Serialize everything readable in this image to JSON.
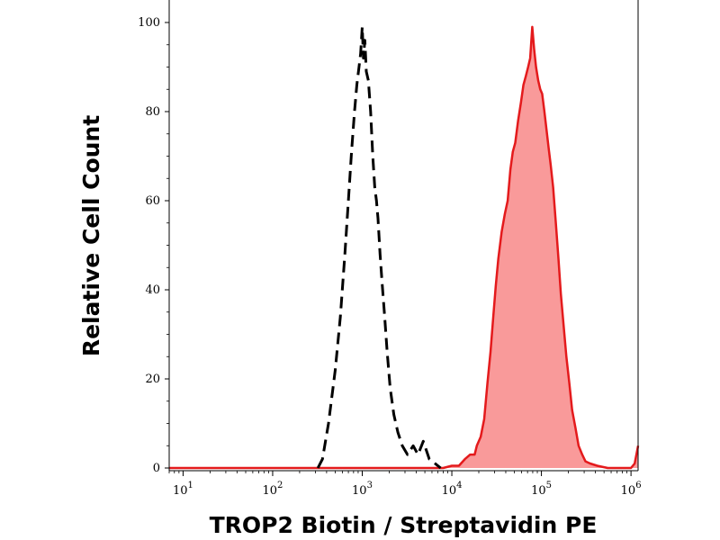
{
  "chart_data": {
    "type": "area",
    "xlabel": "TROP2 Biotin / Streptavidin PE",
    "ylabel": "Relative Cell Count",
    "x_scale": "log",
    "xlim": [
      7,
      1200000
    ],
    "ylim": [
      0,
      100
    ],
    "x_ticks": [
      {
        "base": "10",
        "exp": "1",
        "value": 10
      },
      {
        "base": "10",
        "exp": "2",
        "value": 100
      },
      {
        "base": "10",
        "exp": "3",
        "value": 1000
      },
      {
        "base": "10",
        "exp": "4",
        "value": 10000
      },
      {
        "base": "10",
        "exp": "5",
        "value": 100000
      },
      {
        "base": "10",
        "exp": "6",
        "value": 1000000
      }
    ],
    "y_ticks": [
      {
        "label": "0",
        "value": 0
      },
      {
        "label": "20",
        "value": 20
      },
      {
        "label": "40",
        "value": 40
      },
      {
        "label": "60",
        "value": 60
      },
      {
        "label": "80",
        "value": 80
      },
      {
        "label": "100",
        "value": 100
      }
    ],
    "grid": false,
    "legend": false,
    "series": [
      {
        "style": "dashed",
        "color": "#000000",
        "fill": false,
        "points": [
          [
            320,
            0
          ],
          [
            360,
            2
          ],
          [
            420,
            10
          ],
          [
            500,
            22
          ],
          [
            570,
            34
          ],
          [
            640,
            48
          ],
          [
            700,
            60
          ],
          [
            760,
            71
          ],
          [
            820,
            80
          ],
          [
            870,
            86
          ],
          [
            920,
            90
          ],
          [
            960,
            93
          ],
          [
            1000,
            99
          ],
          [
            1030,
            92
          ],
          [
            1070,
            96
          ],
          [
            1110,
            89
          ],
          [
            1170,
            87
          ],
          [
            1240,
            80
          ],
          [
            1310,
            70
          ],
          [
            1380,
            63
          ],
          [
            1440,
            60
          ],
          [
            1500,
            56
          ],
          [
            1580,
            48
          ],
          [
            1660,
            42
          ],
          [
            1780,
            34
          ],
          [
            1900,
            26
          ],
          [
            2050,
            18
          ],
          [
            2250,
            12
          ],
          [
            2500,
            8
          ],
          [
            2800,
            5
          ],
          [
            3200,
            3
          ],
          [
            3700,
            5
          ],
          [
            4200,
            3
          ],
          [
            4800,
            6
          ],
          [
            5600,
            2
          ],
          [
            6500,
            1
          ],
          [
            7500,
            0
          ]
        ]
      },
      {
        "style": "solid",
        "color": "#e41a1c",
        "fill": true,
        "fill_color": "#f99a9a",
        "points": [
          [
            7,
            0
          ],
          [
            8000,
            0
          ],
          [
            10000,
            0.5
          ],
          [
            12000,
            0.5
          ],
          [
            14000,
            2
          ],
          [
            16000,
            3
          ],
          [
            18000,
            3
          ],
          [
            19000,
            5
          ],
          [
            21000,
            7
          ],
          [
            23000,
            11
          ],
          [
            25000,
            19
          ],
          [
            27000,
            26
          ],
          [
            29000,
            34
          ],
          [
            31000,
            41
          ],
          [
            33000,
            47
          ],
          [
            36000,
            53
          ],
          [
            39000,
            57
          ],
          [
            42000,
            60
          ],
          [
            45000,
            67
          ],
          [
            48000,
            71
          ],
          [
            51000,
            73
          ],
          [
            55000,
            78
          ],
          [
            59000,
            82
          ],
          [
            63000,
            86
          ],
          [
            67000,
            88
          ],
          [
            71000,
            90
          ],
          [
            75000,
            92
          ],
          [
            79000,
            99
          ],
          [
            83000,
            94
          ],
          [
            87000,
            90
          ],
          [
            92000,
            87
          ],
          [
            97000,
            85
          ],
          [
            102000,
            84
          ],
          [
            108000,
            80
          ],
          [
            114000,
            76
          ],
          [
            120000,
            72
          ],
          [
            127000,
            68
          ],
          [
            135000,
            63
          ],
          [
            145000,
            55
          ],
          [
            155000,
            47
          ],
          [
            165000,
            39
          ],
          [
            175000,
            33
          ],
          [
            190000,
            25
          ],
          [
            205000,
            19
          ],
          [
            220000,
            13
          ],
          [
            240000,
            9
          ],
          [
            260000,
            5
          ],
          [
            285000,
            3
          ],
          [
            310000,
            1.5
          ],
          [
            350000,
            1
          ],
          [
            420000,
            0.5
          ],
          [
            550000,
            0
          ],
          [
            1000000,
            0
          ],
          [
            1100000,
            1
          ],
          [
            1200000,
            5
          ]
        ]
      }
    ]
  }
}
